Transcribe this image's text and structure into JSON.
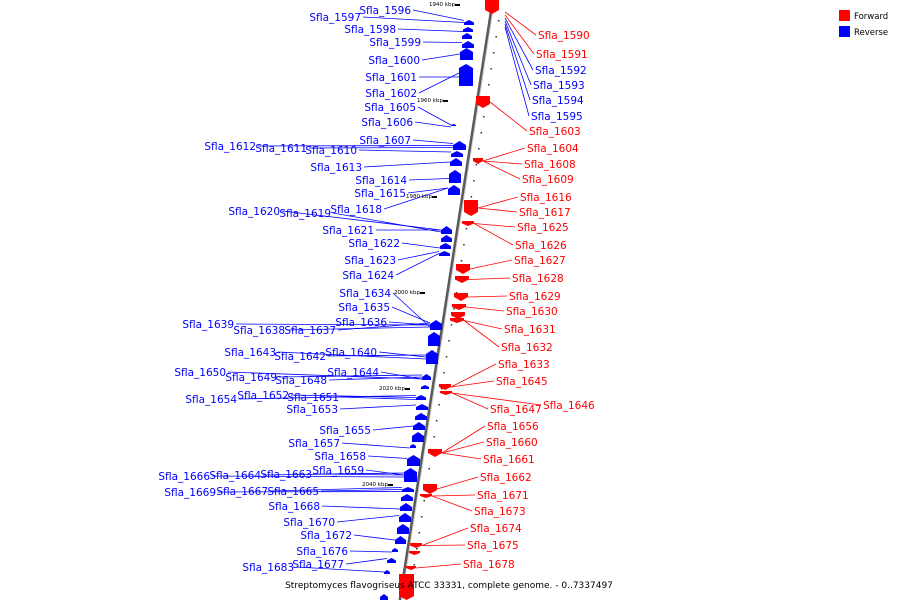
{
  "caption": "Streptomyces flavogriseus ATCC 33331, complete genome. - 0..7337497",
  "legend": [
    {
      "label": "Forward",
      "color": "#ff0000"
    },
    {
      "label": "Reverse",
      "color": "#0000ff"
    }
  ],
  "colors": {
    "forward": "#ff0000",
    "reverse": "#0000ff",
    "backbone": "#888888"
  },
  "scale_marks": [
    "1940 kbp",
    "1960 kbp",
    "1980 kbp",
    "2000 kbp",
    "2020 kbp",
    "2040 kbp"
  ],
  "reverse_genes": [
    "Sfla_1596",
    "Sfla_1597",
    "Sfla_1598",
    "Sfla_1599",
    "Sfla_1600",
    "Sfla_1601",
    "Sfla_1602",
    "Sfla_1605",
    "Sfla_1606",
    "Sfla_1607",
    "Sfla_1612",
    "Sfla_1611",
    "Sfla_1610",
    "Sfla_1613",
    "Sfla_1614",
    "Sfla_1615",
    "Sfla_1620",
    "Sfla_1619",
    "Sfla_1618",
    "Sfla_1621",
    "Sfla_1622",
    "Sfla_1623",
    "Sfla_1624",
    "Sfla_1634",
    "Sfla_1635",
    "Sfla_1639",
    "Sfla_1638",
    "Sfla_1637",
    "Sfla_1636",
    "Sfla_1643",
    "Sfla_1642",
    "Sfla_1640",
    "Sfla_1650",
    "Sfla_1649",
    "Sfla_1648",
    "Sfla_1644",
    "Sfla_1654",
    "Sfla_1652",
    "Sfla_1651",
    "Sfla_1653",
    "Sfla_1655",
    "Sfla_1657",
    "Sfla_1658",
    "Sfla_1659",
    "Sfla_1666",
    "Sfla_1664",
    "Sfla_1663",
    "Sfla_1669",
    "Sfla_1667",
    "Sfla_1665",
    "Sfla_1668",
    "Sfla_1670",
    "Sfla_1672",
    "Sfla_1676",
    "Sfla_1677",
    "Sfla_1683"
  ],
  "forward_genes": [
    "Sfla_1590",
    "Sfla_1591",
    "Sfla_1592",
    "Sfla_1593",
    "Sfla_1594",
    "Sfla_1595",
    "Sfla_1603",
    "Sfla_1604",
    "Sfla_1608",
    "Sfla_1609",
    "Sfla_1616",
    "Sfla_1617",
    "Sfla_1625",
    "Sfla_1626",
    "Sfla_1627",
    "Sfla_1628",
    "Sfla_1629",
    "Sfla_1630",
    "Sfla_1631",
    "Sfla_1632",
    "Sfla_1633",
    "Sfla_1645",
    "Sfla_1646",
    "Sfla_1647",
    "Sfla_1656",
    "Sfla_1660",
    "Sfla_1661",
    "Sfla_1662",
    "Sfla_1671",
    "Sfla_1673",
    "Sfla_1674",
    "Sfla_1675",
    "Sfla_1678"
  ]
}
